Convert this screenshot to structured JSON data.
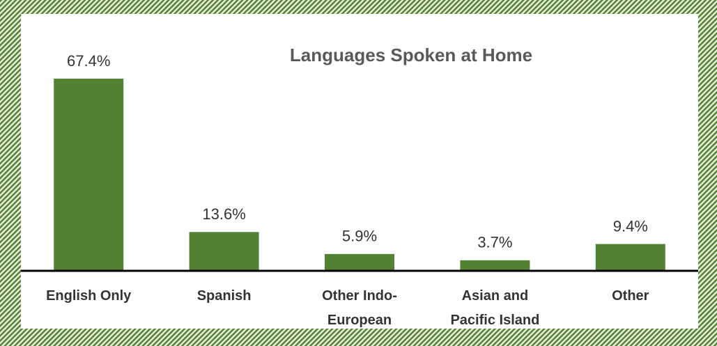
{
  "chart_data": {
    "type": "bar",
    "title": "Languages Spoken at Home",
    "categories": [
      "English Only",
      "Spanish",
      "Other Indo-\nEuropean",
      "Asian and\nPacific Island",
      "Other"
    ],
    "values": [
      67.4,
      13.6,
      5.9,
      3.7,
      9.4
    ],
    "value_labels": [
      "67.4%",
      "13.6%",
      "5.9%",
      "3.7%",
      "9.4%"
    ],
    "color": "#548235"
  }
}
